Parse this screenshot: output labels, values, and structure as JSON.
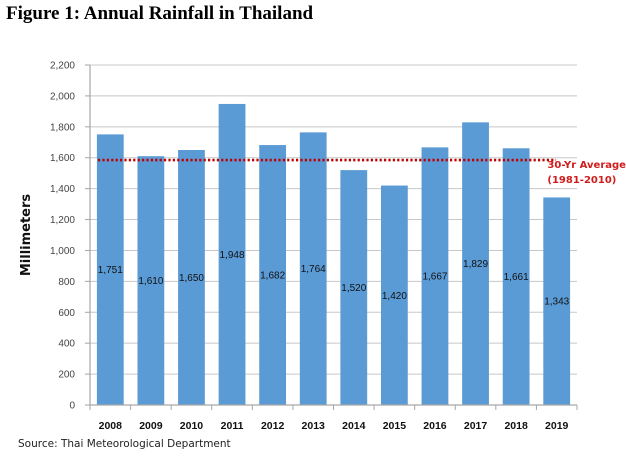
{
  "title": "Figure 1: Annual Rainfall in Thailand",
  "source": "Source: Thai Meteorological Department",
  "chart_data": {
    "type": "bar",
    "title": "Figure 1: Annual Rainfall in Thailand",
    "xlabel": "",
    "ylabel": "Millimeters",
    "ylim": [
      0,
      2200
    ],
    "yticks": [
      0,
      200,
      400,
      600,
      800,
      1000,
      1200,
      1400,
      1600,
      1800,
      2000,
      2200
    ],
    "ytick_labels": [
      "0",
      "200",
      "400",
      "600",
      "800",
      "1,000",
      "1,200",
      "1,400",
      "1,600",
      "1,800",
      "2,000",
      "2,200"
    ],
    "grid": true,
    "categories": [
      "2008",
      "2009",
      "2010",
      "2011",
      "2012",
      "2013",
      "2014",
      "2015",
      "2016",
      "2017",
      "2018",
      "2019"
    ],
    "values": [
      1751,
      1610,
      1650,
      1948,
      1682,
      1764,
      1520,
      1420,
      1667,
      1829,
      1661,
      1343
    ],
    "data_labels": [
      "1,751",
      "1,610",
      "1,650",
      "1,948",
      "1,682",
      "1,764",
      "1,520",
      "1,420",
      "1,667",
      "1,829",
      "1,661",
      "1,343"
    ],
    "bar_color": "#5b9bd5",
    "reference_line": {
      "value": 1585,
      "label_line1": "30-Yr Average",
      "label_line2": "(1981-2010)",
      "color": "#c00000",
      "label_color": "#d11c1c",
      "style": "dotted"
    }
  }
}
